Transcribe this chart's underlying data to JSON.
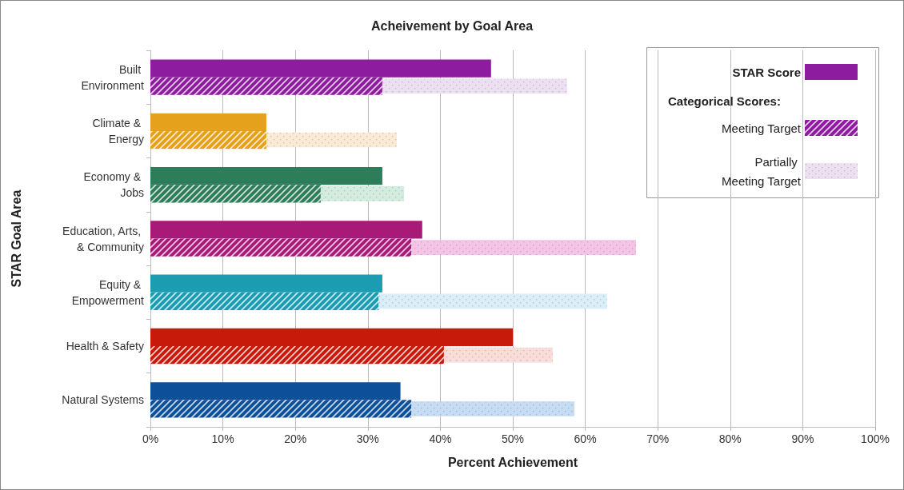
{
  "chart_data": {
    "type": "bar",
    "orientation": "horizontal",
    "title": "Acheivement by Goal Area",
    "xlabel": "Percent Achievement",
    "ylabel": "STAR Goal Area",
    "legend_title": "Categorical Scores:",
    "legend": "top right",
    "grid": "x",
    "categories": [
      "Built Environment",
      "Climate & Energy",
      "Economy & Jobs",
      "Education, Arts, & Community",
      "Equity & Empowerment",
      "Health & Safety",
      "Natural Systems"
    ],
    "xlim": [
      0,
      100
    ],
    "xticks": [
      {
        "value": 0,
        "label": "0%"
      },
      {
        "value": 10,
        "label": "10%"
      },
      {
        "value": 20,
        "label": "20%"
      },
      {
        "value": 30,
        "label": "30%"
      },
      {
        "value": 40,
        "label": "40%"
      },
      {
        "value": 50,
        "label": "50%"
      },
      {
        "value": 60,
        "label": "60%"
      },
      {
        "value": 70,
        "label": "70%"
      },
      {
        "value": 80,
        "label": "80%"
      },
      {
        "value": 90,
        "label": "90%"
      },
      {
        "value": 100,
        "label": "100%"
      }
    ],
    "series": [
      {
        "name": "STAR Score",
        "color": "#8e1c9e",
        "colors": [
          "#8e1c9e",
          "#e6a11c",
          "#2e7d5a",
          "#a81a78",
          "#1b9cb0",
          "#c81a0a",
          "#0e4f9a"
        ],
        "values": [
          47,
          16,
          32,
          37.5,
          32,
          50,
          34.5
        ]
      },
      {
        "name": "Meeting Target",
        "color": "#8e1c9e",
        "colors": [
          "#8e1c9e",
          "#e6a11c",
          "#2e7d5a",
          "#a81a78",
          "#1b9cb0",
          "#c81a0a",
          "#0e4f9a"
        ],
        "values": [
          32,
          16,
          23.5,
          36,
          31.5,
          40.5,
          36
        ]
      },
      {
        "name": "Partially Meeting Target",
        "color": "#ece0f0",
        "colors": [
          "#ece0f0",
          "#fde9d6",
          "#d3ece0",
          "#f3c4e6",
          "#d9eef6",
          "#f8dcd8",
          "#c6dcf2"
        ],
        "base": [
          32,
          16,
          23.5,
          36,
          31.5,
          40.5,
          36
        ],
        "values": [
          25.5,
          18,
          11.5,
          31,
          31.5,
          15,
          22.5
        ]
      }
    ]
  }
}
